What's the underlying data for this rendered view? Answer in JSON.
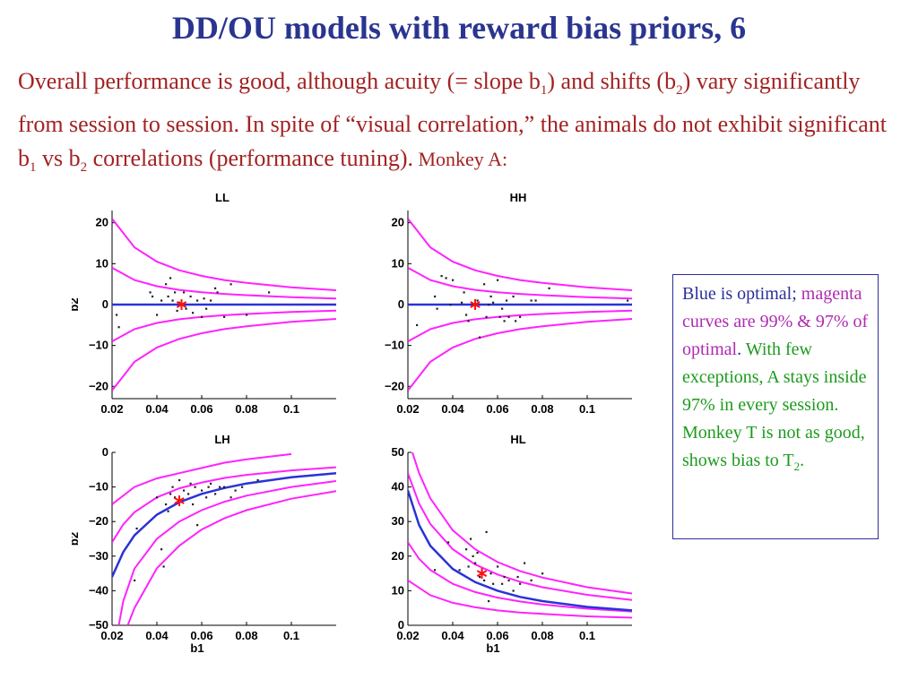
{
  "slide": {
    "title": "DD/OU models with reward bias priors, 6",
    "intro": {
      "p1": "Overall performance is good, although acuity (= slope b",
      "sub1": "1",
      "p2": ") and shifts (b",
      "sub2": "2",
      "p3": ") vary significantly from session to session. In spite of “visual correlation,” the animals do not exhibit significant b",
      "sub3": "1",
      "p4": " vs b",
      "sub4": "2",
      "p5": " correlations (performance tuning).",
      "p6": " Monkey A:"
    },
    "note": {
      "blue": "Blue is optimal;",
      "magenta": " magenta curves are 99% & 97% of optimal",
      "dot": ".",
      "green": " With few exceptions, A stays inside 97% in every session. Monkey T is not as good, shows bias to T",
      "green_sub": "2",
      "green_end": "."
    }
  },
  "colors": {
    "optimal": "#2a33d6",
    "bounds": "#ff22ff",
    "mean_star": "#ff1010",
    "points": "#222222"
  },
  "chart_data": [
    {
      "type": "scatter",
      "title": "LL",
      "xlabel": "",
      "ylabel": "b2",
      "xlim": [
        0.02,
        0.12
      ],
      "ylim": [
        -23,
        23
      ],
      "xticks": [
        0.02,
        0.04,
        0.06,
        0.08,
        0.1
      ],
      "xtick_labels": [
        "0.02",
        "0.04",
        "0.06",
        "0.08",
        "0.1"
      ],
      "yticks": [
        20,
        10,
        0,
        -10,
        -20
      ],
      "ytick_labels": [
        "20",
        "10",
        "0",
        "−10",
        "−20"
      ],
      "optimal": [
        [
          0.02,
          0
        ],
        [
          0.12,
          0
        ]
      ],
      "bounds": [
        [
          [
            0.02,
            21
          ],
          [
            0.03,
            14
          ],
          [
            0.04,
            10.5
          ],
          [
            0.05,
            8.4
          ],
          [
            0.06,
            7
          ],
          [
            0.07,
            6
          ],
          [
            0.08,
            5.3
          ],
          [
            0.1,
            4.2
          ],
          [
            0.12,
            3.5
          ]
        ],
        [
          [
            0.02,
            9
          ],
          [
            0.03,
            6
          ],
          [
            0.04,
            4.5
          ],
          [
            0.05,
            3.6
          ],
          [
            0.06,
            3
          ],
          [
            0.07,
            2.6
          ],
          [
            0.08,
            2.3
          ],
          [
            0.1,
            1.8
          ],
          [
            0.12,
            1.5
          ]
        ],
        [
          [
            0.02,
            -9
          ],
          [
            0.03,
            -6
          ],
          [
            0.04,
            -4.5
          ],
          [
            0.05,
            -3.6
          ],
          [
            0.06,
            -3
          ],
          [
            0.07,
            -2.6
          ],
          [
            0.08,
            -2.3
          ],
          [
            0.1,
            -1.8
          ],
          [
            0.12,
            -1.5
          ]
        ],
        [
          [
            0.02,
            -21
          ],
          [
            0.03,
            -14
          ],
          [
            0.04,
            -10.5
          ],
          [
            0.05,
            -8.4
          ],
          [
            0.06,
            -7
          ],
          [
            0.07,
            -6
          ],
          [
            0.08,
            -5.3
          ],
          [
            0.1,
            -4.2
          ],
          [
            0.12,
            -3.5
          ]
        ]
      ],
      "points": [
        [
          0.022,
          -2.5
        ],
        [
          0.023,
          -5.5
        ],
        [
          0.037,
          3
        ],
        [
          0.038,
          2
        ],
        [
          0.04,
          -2.5
        ],
        [
          0.042,
          1
        ],
        [
          0.044,
          5
        ],
        [
          0.045,
          2
        ],
        [
          0.046,
          6.5
        ],
        [
          0.047,
          1
        ],
        [
          0.048,
          3
        ],
        [
          0.049,
          -1.5
        ],
        [
          0.05,
          0.5
        ],
        [
          0.052,
          3
        ],
        [
          0.053,
          -1
        ],
        [
          0.055,
          2
        ],
        [
          0.056,
          -2
        ],
        [
          0.058,
          1
        ],
        [
          0.06,
          -3
        ],
        [
          0.061,
          1.5
        ],
        [
          0.062,
          -1
        ],
        [
          0.064,
          1
        ],
        [
          0.066,
          4
        ],
        [
          0.067,
          3
        ],
        [
          0.07,
          -3
        ],
        [
          0.073,
          5
        ],
        [
          0.08,
          -2.5
        ],
        [
          0.09,
          3
        ]
      ],
      "mean": [
        0.051,
        0
      ]
    },
    {
      "type": "scatter",
      "title": "HH",
      "xlabel": "",
      "ylabel": "",
      "xlim": [
        0.02,
        0.12
      ],
      "ylim": [
        -23,
        23
      ],
      "xticks": [
        0.02,
        0.04,
        0.06,
        0.08,
        0.1
      ],
      "xtick_labels": [
        "0.02",
        "0.04",
        "0.06",
        "0.08",
        "0.1"
      ],
      "yticks": [
        20,
        10,
        0,
        -10,
        -20
      ],
      "ytick_labels": [
        "20",
        "10",
        "0",
        "−10",
        "−20"
      ],
      "optimal": [
        [
          0.02,
          0
        ],
        [
          0.12,
          0
        ]
      ],
      "bounds": [
        [
          [
            0.02,
            21
          ],
          [
            0.03,
            14
          ],
          [
            0.04,
            10.5
          ],
          [
            0.05,
            8.4
          ],
          [
            0.06,
            7
          ],
          [
            0.07,
            6
          ],
          [
            0.08,
            5.3
          ],
          [
            0.1,
            4.2
          ],
          [
            0.12,
            3.5
          ]
        ],
        [
          [
            0.02,
            9
          ],
          [
            0.03,
            6
          ],
          [
            0.04,
            4.5
          ],
          [
            0.05,
            3.6
          ],
          [
            0.06,
            3
          ],
          [
            0.07,
            2.6
          ],
          [
            0.08,
            2.3
          ],
          [
            0.1,
            1.8
          ],
          [
            0.12,
            1.5
          ]
        ],
        [
          [
            0.02,
            -9
          ],
          [
            0.03,
            -6
          ],
          [
            0.04,
            -4.5
          ],
          [
            0.05,
            -3.6
          ],
          [
            0.06,
            -3
          ],
          [
            0.07,
            -2.6
          ],
          [
            0.08,
            -2.3
          ],
          [
            0.1,
            -1.8
          ],
          [
            0.12,
            -1.5
          ]
        ],
        [
          [
            0.02,
            -21
          ],
          [
            0.03,
            -14
          ],
          [
            0.04,
            -10.5
          ],
          [
            0.05,
            -8.4
          ],
          [
            0.06,
            -7
          ],
          [
            0.07,
            -6
          ],
          [
            0.08,
            -5.3
          ],
          [
            0.1,
            -4.2
          ],
          [
            0.12,
            -3.5
          ]
        ]
      ],
      "points": [
        [
          0.024,
          -5
        ],
        [
          0.032,
          2
        ],
        [
          0.033,
          -1
        ],
        [
          0.035,
          7
        ],
        [
          0.037,
          6.5
        ],
        [
          0.039,
          0
        ],
        [
          0.04,
          6
        ],
        [
          0.044,
          0.5
        ],
        [
          0.045,
          3
        ],
        [
          0.046,
          -2.5
        ],
        [
          0.047,
          -4
        ],
        [
          0.049,
          0
        ],
        [
          0.051,
          1
        ],
        [
          0.052,
          -8
        ],
        [
          0.054,
          5
        ],
        [
          0.055,
          -3
        ],
        [
          0.056,
          0
        ],
        [
          0.057,
          2
        ],
        [
          0.058,
          0.5
        ],
        [
          0.06,
          6
        ],
        [
          0.061,
          -3
        ],
        [
          0.062,
          -1
        ],
        [
          0.063,
          -4
        ],
        [
          0.064,
          1
        ],
        [
          0.065,
          -3
        ],
        [
          0.067,
          2
        ],
        [
          0.068,
          -4
        ],
        [
          0.07,
          -3
        ],
        [
          0.075,
          1
        ],
        [
          0.077,
          1
        ],
        [
          0.083,
          4
        ],
        [
          0.118,
          1
        ]
      ],
      "mean": [
        0.05,
        0
      ]
    },
    {
      "type": "scatter",
      "title": "LH",
      "xlabel": "b1",
      "ylabel": "b2",
      "xlim": [
        0.02,
        0.12
      ],
      "ylim": [
        -50,
        0
      ],
      "xticks": [
        0.02,
        0.04,
        0.06,
        0.08,
        0.1
      ],
      "xtick_labels": [
        "0.02",
        "0.04",
        "0.06",
        "0.08",
        "0.1"
      ],
      "yticks": [
        0,
        -10,
        -20,
        -30,
        -40,
        -50
      ],
      "ytick_labels": [
        "0",
        "−10",
        "−20",
        "−30",
        "−40",
        "−50"
      ],
      "optimal": [
        [
          0.02,
          -36
        ],
        [
          0.025,
          -28.8
        ],
        [
          0.03,
          -24
        ],
        [
          0.04,
          -18
        ],
        [
          0.05,
          -14.4
        ],
        [
          0.06,
          -12
        ],
        [
          0.07,
          -10.3
        ],
        [
          0.08,
          -9
        ],
        [
          0.1,
          -7.2
        ],
        [
          0.12,
          -6
        ]
      ],
      "bounds": [
        [
          [
            0.02,
            -15
          ],
          [
            0.03,
            -10
          ],
          [
            0.04,
            -7.5
          ],
          [
            0.05,
            -6
          ],
          [
            0.06,
            -4.5
          ],
          [
            0.07,
            -3
          ],
          [
            0.08,
            -2
          ],
          [
            0.1,
            -0.5
          ]
        ],
        [
          [
            0.02,
            -26
          ],
          [
            0.025,
            -20.8
          ],
          [
            0.03,
            -17.3
          ],
          [
            0.04,
            -13
          ],
          [
            0.05,
            -10.4
          ],
          [
            0.06,
            -8.7
          ],
          [
            0.07,
            -7.4
          ],
          [
            0.08,
            -6.5
          ],
          [
            0.1,
            -5.2
          ],
          [
            0.12,
            -4.3
          ]
        ],
        [
          [
            0.023,
            -50
          ],
          [
            0.025,
            -43
          ],
          [
            0.03,
            -33.6
          ],
          [
            0.04,
            -25
          ],
          [
            0.05,
            -20
          ],
          [
            0.06,
            -16.7
          ],
          [
            0.07,
            -14.3
          ],
          [
            0.08,
            -12.5
          ],
          [
            0.1,
            -10
          ],
          [
            0.12,
            -8.3
          ]
        ],
        [
          [
            0.027,
            -50
          ],
          [
            0.03,
            -45
          ],
          [
            0.04,
            -33.5
          ],
          [
            0.05,
            -27
          ],
          [
            0.06,
            -22.3
          ],
          [
            0.07,
            -19.1
          ],
          [
            0.08,
            -16.7
          ],
          [
            0.1,
            -13.4
          ],
          [
            0.12,
            -11.2
          ]
        ]
      ],
      "points": [
        [
          0.03,
          -37
        ],
        [
          0.031,
          -22
        ],
        [
          0.04,
          -13
        ],
        [
          0.042,
          -28
        ],
        [
          0.043,
          -33
        ],
        [
          0.044,
          -15
        ],
        [
          0.045,
          -17
        ],
        [
          0.046,
          -12
        ],
        [
          0.047,
          -10
        ],
        [
          0.048,
          -13
        ],
        [
          0.05,
          -8
        ],
        [
          0.052,
          -11
        ],
        [
          0.054,
          -12
        ],
        [
          0.055,
          -9
        ],
        [
          0.056,
          -15
        ],
        [
          0.057,
          -10
        ],
        [
          0.058,
          -21
        ],
        [
          0.06,
          -11
        ],
        [
          0.062,
          -13
        ],
        [
          0.063,
          -10
        ],
        [
          0.064,
          -9
        ],
        [
          0.066,
          -12
        ],
        [
          0.068,
          -10
        ],
        [
          0.07,
          -10
        ],
        [
          0.073,
          -13
        ],
        [
          0.075,
          -11
        ],
        [
          0.078,
          -10
        ],
        [
          0.085,
          -8
        ]
      ],
      "mean": [
        0.05,
        -14
      ]
    },
    {
      "type": "scatter",
      "title": "HL",
      "xlabel": "b1",
      "ylabel": "",
      "xlim": [
        0.02,
        0.12
      ],
      "ylim": [
        0,
        50
      ],
      "xticks": [
        0.02,
        0.04,
        0.06,
        0.08,
        0.1
      ],
      "xtick_labels": [
        "0.02",
        "0.04",
        "0.06",
        "0.08",
        "0.1"
      ],
      "yticks": [
        50,
        40,
        30,
        20,
        10,
        0
      ],
      "ytick_labels": [
        "50",
        "40",
        "30",
        "20",
        "10",
        "0"
      ],
      "optimal": [
        [
          0.02,
          39
        ],
        [
          0.025,
          29
        ],
        [
          0.03,
          23
        ],
        [
          0.04,
          16.3
        ],
        [
          0.05,
          12.5
        ],
        [
          0.06,
          10
        ],
        [
          0.07,
          8.2
        ],
        [
          0.08,
          7
        ],
        [
          0.1,
          5.3
        ],
        [
          0.12,
          4.3
        ]
      ],
      "bounds": [
        [
          [
            0.022,
            50
          ],
          [
            0.025,
            44
          ],
          [
            0.03,
            36.7
          ],
          [
            0.04,
            27.5
          ],
          [
            0.05,
            22
          ],
          [
            0.06,
            18.3
          ],
          [
            0.07,
            15.7
          ],
          [
            0.08,
            13.8
          ],
          [
            0.1,
            11
          ],
          [
            0.12,
            9.2
          ]
        ],
        [
          [
            0.02,
            44
          ],
          [
            0.025,
            35.2
          ],
          [
            0.03,
            29.3
          ],
          [
            0.04,
            22
          ],
          [
            0.05,
            17.6
          ],
          [
            0.06,
            14.7
          ],
          [
            0.07,
            12.6
          ],
          [
            0.08,
            11
          ],
          [
            0.1,
            8.8
          ],
          [
            0.12,
            7.3
          ]
        ],
        [
          [
            0.02,
            24
          ],
          [
            0.025,
            19.2
          ],
          [
            0.03,
            16
          ],
          [
            0.04,
            12
          ],
          [
            0.05,
            9.6
          ],
          [
            0.06,
            8
          ],
          [
            0.07,
            6.9
          ],
          [
            0.08,
            6
          ],
          [
            0.1,
            4.8
          ],
          [
            0.12,
            4
          ]
        ],
        [
          [
            0.02,
            13
          ],
          [
            0.03,
            8.7
          ],
          [
            0.04,
            6.5
          ],
          [
            0.05,
            5.2
          ],
          [
            0.06,
            4.3
          ],
          [
            0.07,
            3.7
          ],
          [
            0.08,
            3.3
          ],
          [
            0.1,
            2.6
          ],
          [
            0.12,
            2.2
          ]
        ]
      ],
      "points": [
        [
          0.032,
          16
        ],
        [
          0.038,
          24
        ],
        [
          0.043,
          16
        ],
        [
          0.046,
          22
        ],
        [
          0.047,
          17
        ],
        [
          0.048,
          25
        ],
        [
          0.049,
          20
        ],
        [
          0.05,
          18
        ],
        [
          0.051,
          21
        ],
        [
          0.052,
          14
        ],
        [
          0.053,
          16
        ],
        [
          0.054,
          13
        ],
        [
          0.055,
          27
        ],
        [
          0.056,
          7
        ],
        [
          0.057,
          15
        ],
        [
          0.058,
          12
        ],
        [
          0.06,
          17
        ],
        [
          0.062,
          12
        ],
        [
          0.063,
          14
        ],
        [
          0.065,
          13
        ],
        [
          0.067,
          10
        ],
        [
          0.069,
          14
        ],
        [
          0.07,
          12
        ],
        [
          0.072,
          18
        ],
        [
          0.075,
          13
        ],
        [
          0.08,
          15
        ]
      ],
      "mean": [
        0.053,
        15
      ]
    }
  ]
}
